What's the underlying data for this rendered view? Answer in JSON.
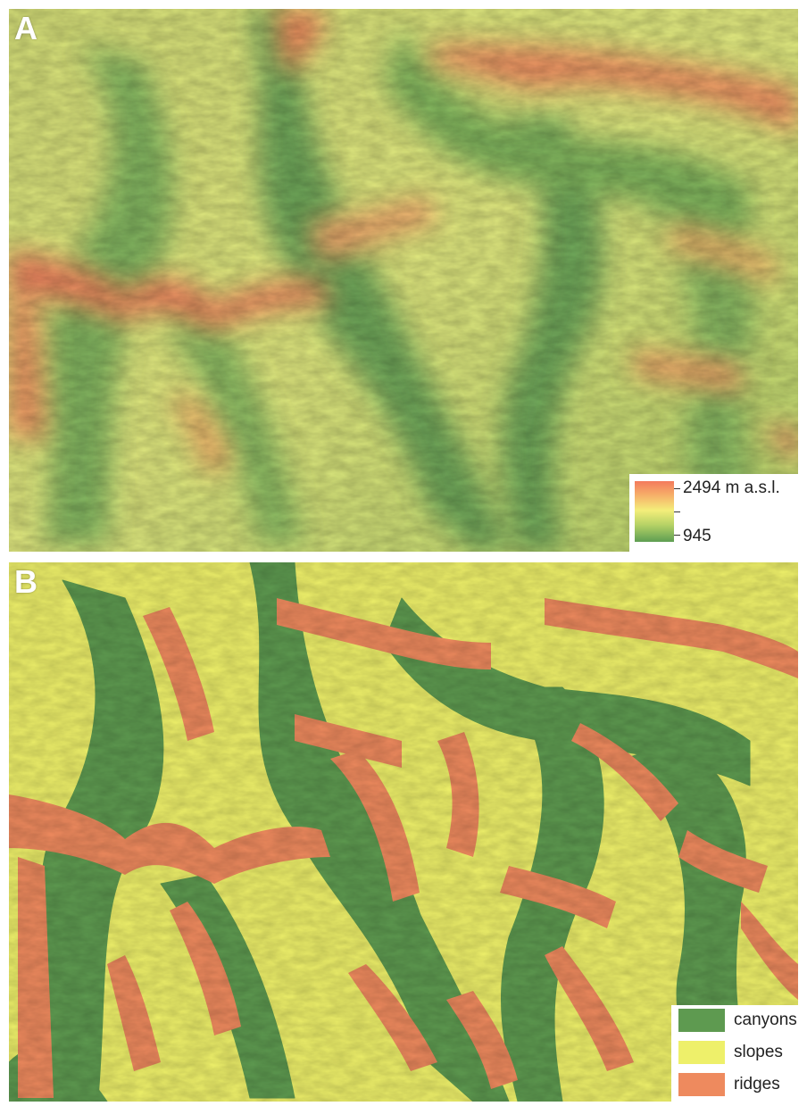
{
  "panel_a": {
    "label": "A",
    "legend": {
      "max_label": "2494 m a.s.l.",
      "min_label": "945",
      "ramp_colors": [
        "#f47a5c",
        "#f6b46a",
        "#f4ee7a",
        "#b6d266",
        "#5e9e52"
      ]
    }
  },
  "panel_b": {
    "label": "B",
    "legend": {
      "items": [
        {
          "label": "canyons",
          "color": "#5e9a50"
        },
        {
          "label": "slopes",
          "color": "#eef06a"
        },
        {
          "label": "ridges",
          "color": "#ee8a5e"
        }
      ]
    }
  }
}
